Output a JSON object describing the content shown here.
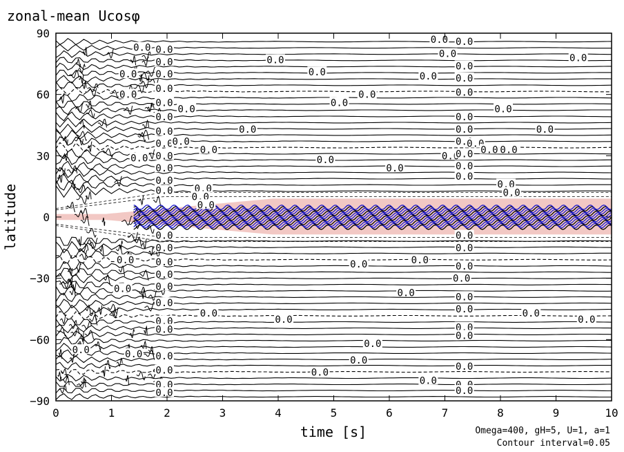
{
  "chart_data": {
    "type": "contour",
    "title": "zonal-mean Ucosφ",
    "xlabel": "time [s]",
    "ylabel": "latitude",
    "xlim": [
      0,
      10
    ],
    "ylim": [
      -90,
      90
    ],
    "x_ticks": [
      "0",
      "1",
      "2",
      "3",
      "4",
      "5",
      "6",
      "7",
      "8",
      "9",
      "10"
    ],
    "y_ticks": [
      "90",
      "60",
      "30",
      "0",
      "−30",
      "−60",
      "−90"
    ],
    "contour_interval": 0.05,
    "notes": [
      "Omega=400, gH=5, U=1, a=1",
      "Contour interval=0.05"
    ],
    "contour_label_text": "0.0",
    "contour_labels": [
      {
        "x": 1.95,
        "y": 82
      },
      {
        "x": 1.95,
        "y": 76
      },
      {
        "x": 1.95,
        "y": 70
      },
      {
        "x": 1.95,
        "y": 63
      },
      {
        "x": 1.95,
        "y": 56
      },
      {
        "x": 1.95,
        "y": 49
      },
      {
        "x": 1.95,
        "y": 42
      },
      {
        "x": 1.95,
        "y": 36
      },
      {
        "x": 1.95,
        "y": 30
      },
      {
        "x": 1.95,
        "y": 24
      },
      {
        "x": 1.95,
        "y": 18
      },
      {
        "x": 1.95,
        "y": 13
      },
      {
        "x": 1.95,
        "y": -9
      },
      {
        "x": 1.95,
        "y": -15
      },
      {
        "x": 1.95,
        "y": -22
      },
      {
        "x": 1.95,
        "y": -28
      },
      {
        "x": 1.95,
        "y": -34
      },
      {
        "x": 1.95,
        "y": -42
      },
      {
        "x": 1.95,
        "y": -51
      },
      {
        "x": 1.95,
        "y": -55
      },
      {
        "x": 1.95,
        "y": -68
      },
      {
        "x": 1.95,
        "y": -75
      },
      {
        "x": 1.95,
        "y": -82
      },
      {
        "x": 1.95,
        "y": -86
      },
      {
        "x": 1.55,
        "y": 83
      },
      {
        "x": 1.3,
        "y": 70
      },
      {
        "x": 1.3,
        "y": 60
      },
      {
        "x": 1.5,
        "y": 29
      },
      {
        "x": 1.25,
        "y": -21
      },
      {
        "x": 1.2,
        "y": -35
      },
      {
        "x": 1.4,
        "y": -67
      },
      {
        "x": 0.45,
        "y": -65
      },
      {
        "x": 2.35,
        "y": 53
      },
      {
        "x": 2.25,
        "y": 37
      },
      {
        "x": 2.75,
        "y": 33
      },
      {
        "x": 2.65,
        "y": 14
      },
      {
        "x": 2.6,
        "y": 10
      },
      {
        "x": 2.7,
        "y": 6
      },
      {
        "x": 3.45,
        "y": 43
      },
      {
        "x": 3.95,
        "y": 77
      },
      {
        "x": 4.7,
        "y": 71
      },
      {
        "x": 4.85,
        "y": 28
      },
      {
        "x": 4.1,
        "y": -50
      },
      {
        "x": 2.75,
        "y": -47
      },
      {
        "x": 5.45,
        "y": -23
      },
      {
        "x": 5.6,
        "y": 60
      },
      {
        "x": 5.1,
        "y": 56
      },
      {
        "x": 5.7,
        "y": -62
      },
      {
        "x": 5.45,
        "y": -70
      },
      {
        "x": 4.75,
        "y": -76
      },
      {
        "x": 6.1,
        "y": 24
      },
      {
        "x": 6.3,
        "y": -37
      },
      {
        "x": 6.7,
        "y": 69
      },
      {
        "x": 6.55,
        "y": -21
      },
      {
        "x": 6.7,
        "y": -80
      },
      {
        "x": 6.9,
        "y": 87
      },
      {
        "x": 7.05,
        "y": 80
      },
      {
        "x": 7.1,
        "y": 30
      },
      {
        "x": 7.3,
        "y": -30
      },
      {
        "x": 7.35,
        "y": 86
      },
      {
        "x": 7.35,
        "y": 74
      },
      {
        "x": 7.35,
        "y": 68
      },
      {
        "x": 7.35,
        "y": 61
      },
      {
        "x": 7.35,
        "y": 49
      },
      {
        "x": 7.35,
        "y": 43
      },
      {
        "x": 7.35,
        "y": 37
      },
      {
        "x": 7.35,
        "y": 31
      },
      {
        "x": 7.35,
        "y": 25
      },
      {
        "x": 7.35,
        "y": 20
      },
      {
        "x": 7.35,
        "y": -9
      },
      {
        "x": 7.35,
        "y": -15
      },
      {
        "x": 7.35,
        "y": -24
      },
      {
        "x": 7.35,
        "y": -39
      },
      {
        "x": 7.35,
        "y": -45
      },
      {
        "x": 7.35,
        "y": -54
      },
      {
        "x": 7.35,
        "y": -58
      },
      {
        "x": 7.35,
        "y": -73
      },
      {
        "x": 7.35,
        "y": -82
      },
      {
        "x": 7.35,
        "y": -85
      },
      {
        "x": 7.55,
        "y": 36
      },
      {
        "x": 7.8,
        "y": 33
      },
      {
        "x": 8.05,
        "y": 53
      },
      {
        "x": 8.1,
        "y": 16
      },
      {
        "x": 8.2,
        "y": 12
      },
      {
        "x": 8.15,
        "y": 33
      },
      {
        "x": 8.55,
        "y": -47
      },
      {
        "x": 8.8,
        "y": 43
      },
      {
        "x": 9.4,
        "y": 78
      },
      {
        "x": 9.55,
        "y": -50
      }
    ]
  }
}
